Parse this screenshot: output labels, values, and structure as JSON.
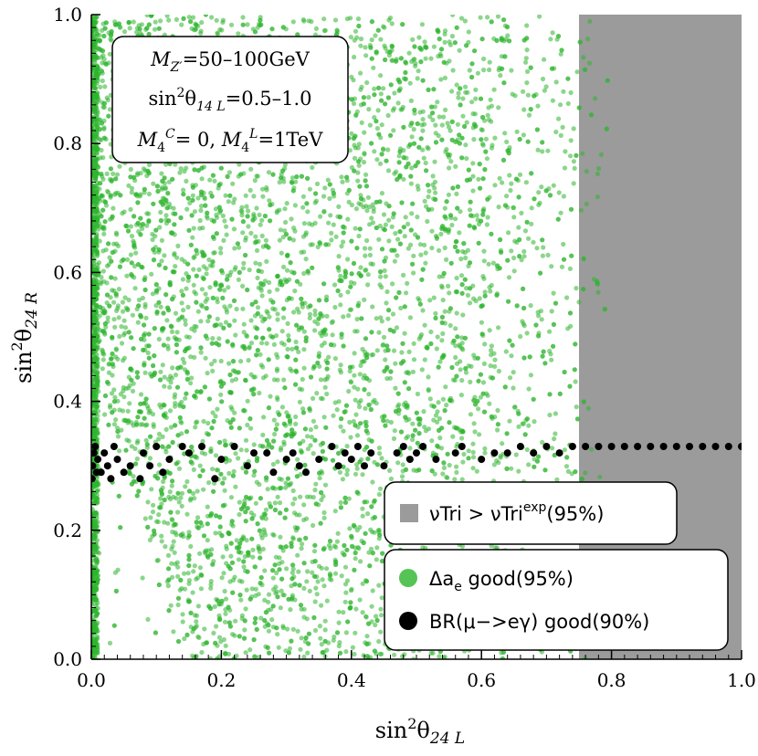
{
  "chart_data": {
    "type": "scatter",
    "xlabel": "sin²θ₂₄ L",
    "ylabel": "sin²θ₂₄ R",
    "xlim": [
      0,
      1
    ],
    "ylim": [
      0,
      1
    ],
    "xticks": [
      "0.0",
      "0.2",
      "0.4",
      "0.6",
      "0.8",
      "1.0"
    ],
    "yticks": [
      "0.0",
      "0.2",
      "0.4",
      "0.6",
      "0.8",
      "1.0"
    ],
    "grid": false,
    "colors": {
      "excluded_region": "#9b9b9b",
      "green_points": "#2db52d",
      "black_points": "#000000"
    },
    "excluded_region": {
      "label": "νTri > νTri",
      "label_sup": "exp",
      "label_suffix": "(95%)",
      "x_min": 0.75,
      "x_max": 1.0
    },
    "green_region": {
      "label": "Δa",
      "label_sub": "e",
      "label_suffix": " good(95%)",
      "density_note": "dense for x<0.6, fading to x≈0.8",
      "lower_boundary": [
        [
          0.0,
          0.48
        ],
        [
          0.03,
          0.38
        ],
        [
          0.06,
          0.28
        ],
        [
          0.09,
          0.18
        ],
        [
          0.12,
          0.09
        ],
        [
          0.15,
          0.0
        ]
      ]
    },
    "black_series": {
      "label": "BR(μ−>eγ) good(90%)",
      "points": [
        [
          0.001,
          0.28
        ],
        [
          0.002,
          0.3
        ],
        [
          0.004,
          0.32
        ],
        [
          0.006,
          0.33
        ],
        [
          0.008,
          0.29
        ],
        [
          0.01,
          0.31
        ],
        [
          0.015,
          0.29
        ],
        [
          0.02,
          0.32
        ],
        [
          0.025,
          0.3
        ],
        [
          0.03,
          0.28
        ],
        [
          0.035,
          0.33
        ],
        [
          0.04,
          0.31
        ],
        [
          0.05,
          0.29
        ],
        [
          0.06,
          0.3
        ],
        [
          0.075,
          0.28
        ],
        [
          0.08,
          0.32
        ],
        [
          0.09,
          0.3
        ],
        [
          0.1,
          0.33
        ],
        [
          0.11,
          0.29
        ],
        [
          0.12,
          0.31
        ],
        [
          0.14,
          0.33
        ],
        [
          0.15,
          0.32
        ],
        [
          0.17,
          0.33
        ],
        [
          0.19,
          0.28
        ],
        [
          0.2,
          0.31
        ],
        [
          0.22,
          0.33
        ],
        [
          0.24,
          0.3
        ],
        [
          0.25,
          0.32
        ],
        [
          0.27,
          0.32
        ],
        [
          0.28,
          0.29
        ],
        [
          0.3,
          0.31
        ],
        [
          0.31,
          0.32
        ],
        [
          0.32,
          0.3
        ],
        [
          0.33,
          0.29
        ],
        [
          0.35,
          0.31
        ],
        [
          0.37,
          0.33
        ],
        [
          0.38,
          0.3
        ],
        [
          0.39,
          0.32
        ],
        [
          0.4,
          0.31
        ],
        [
          0.41,
          0.33
        ],
        [
          0.42,
          0.3
        ],
        [
          0.43,
          0.32
        ],
        [
          0.45,
          0.3
        ],
        [
          0.47,
          0.32
        ],
        [
          0.48,
          0.33
        ],
        [
          0.49,
          0.31
        ],
        [
          0.5,
          0.32
        ],
        [
          0.51,
          0.33
        ],
        [
          0.53,
          0.31
        ],
        [
          0.56,
          0.32
        ],
        [
          0.57,
          0.33
        ],
        [
          0.6,
          0.31
        ],
        [
          0.62,
          0.32
        ],
        [
          0.64,
          0.32
        ],
        [
          0.66,
          0.33
        ],
        [
          0.68,
          0.32
        ],
        [
          0.7,
          0.33
        ],
        [
          0.72,
          0.32
        ],
        [
          0.74,
          0.33
        ],
        [
          0.76,
          0.33
        ],
        [
          0.78,
          0.33
        ],
        [
          0.8,
          0.33
        ],
        [
          0.82,
          0.33
        ],
        [
          0.84,
          0.33
        ],
        [
          0.86,
          0.33
        ],
        [
          0.88,
          0.33
        ],
        [
          0.9,
          0.33
        ],
        [
          0.92,
          0.33
        ],
        [
          0.94,
          0.33
        ],
        [
          0.96,
          0.33
        ],
        [
          0.98,
          0.33
        ],
        [
          1.0,
          0.33
        ]
      ]
    },
    "parameter_box": {
      "line1": "M",
      "line1_sub": "Z′",
      "line1_rest": "=50–100GeV",
      "line2": "sin",
      "line2_sup": "2",
      "line2_mid": "θ",
      "line2_sub": "14 L",
      "line2_rest": "=0.5–1.0",
      "line3_a": "M",
      "line3_a_sub": "4",
      "line3_a_sup": "C",
      "line3_a_rest": "= 0, ",
      "line3_b": "M",
      "line3_b_sub": "4",
      "line3_b_sup": "L",
      "line3_b_rest": "=1TeV"
    },
    "legend_placement": "bottom-right"
  }
}
